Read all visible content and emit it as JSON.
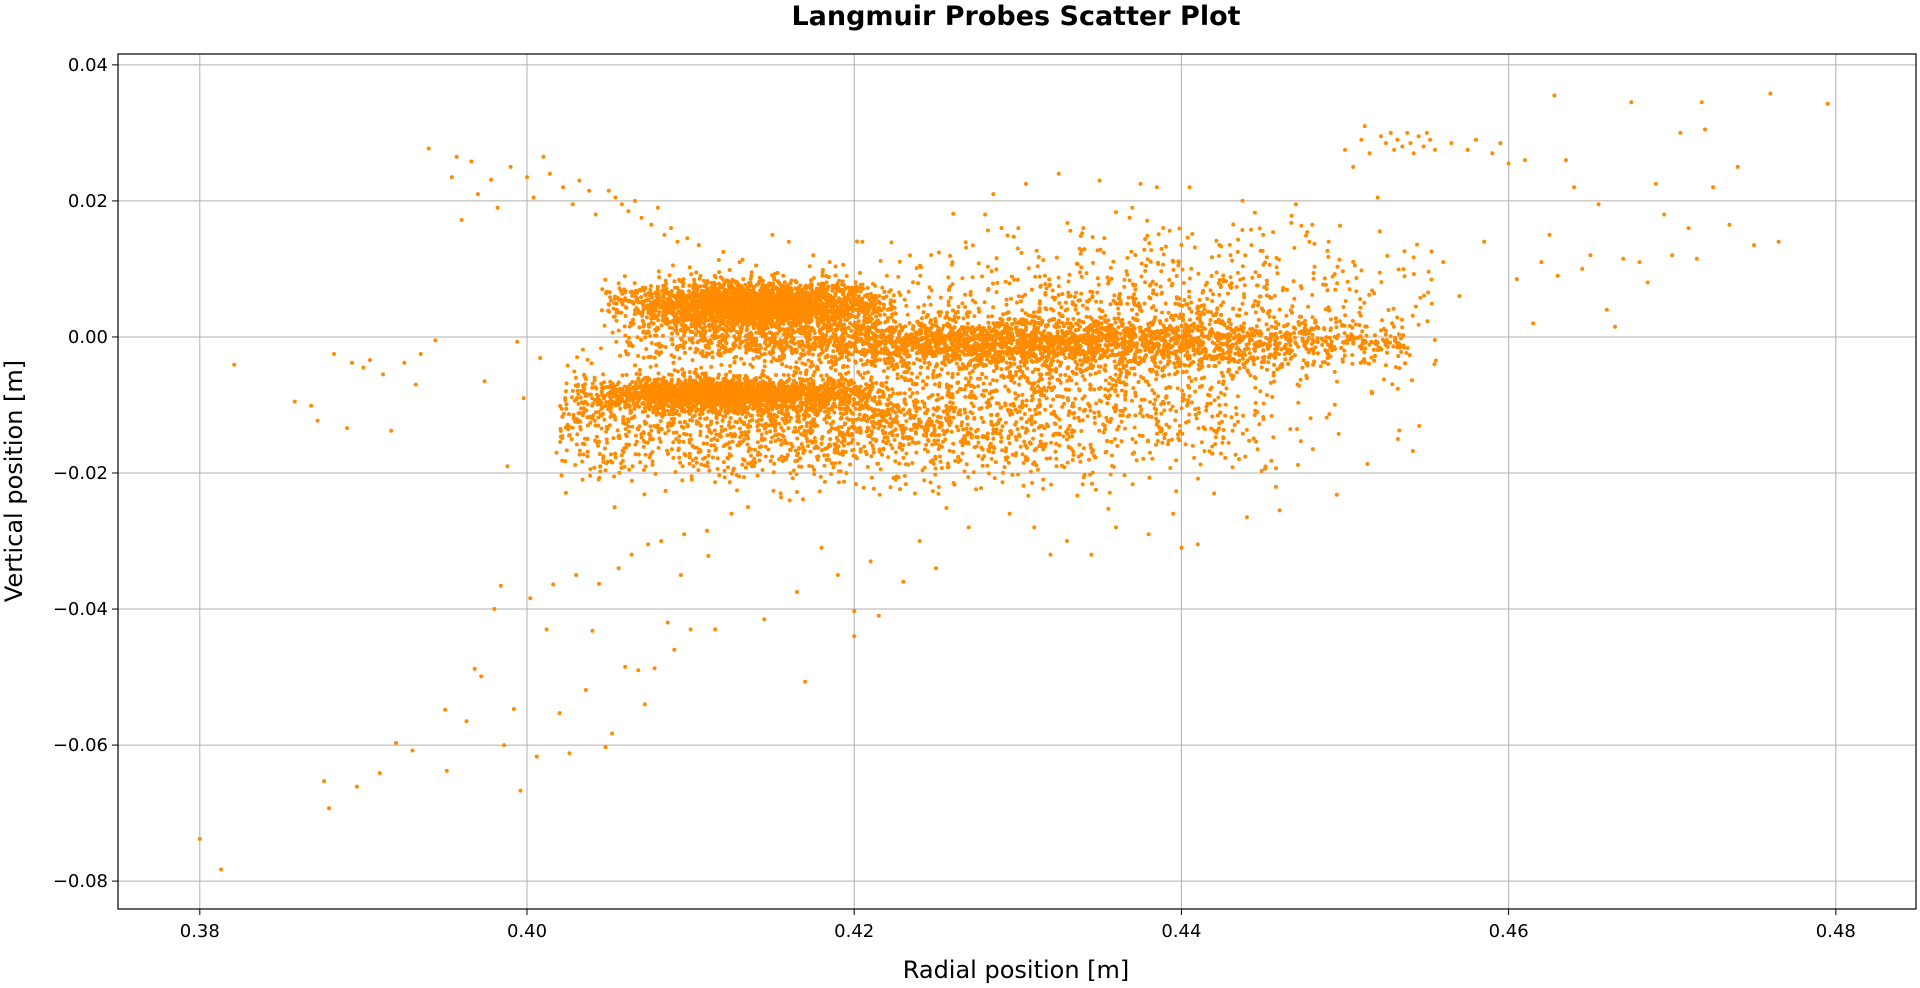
{
  "chart_data": {
    "type": "scatter",
    "title": "Langmuir Probes Scatter Plot",
    "xlabel": "Radial position [m]",
    "ylabel": "Vertical position [m]",
    "xlim": [
      0.375,
      0.4849
    ],
    "ylim": [
      -0.0841,
      0.0416
    ],
    "xticks": [
      0.38,
      0.4,
      0.42,
      0.44,
      0.46,
      0.48
    ],
    "xtick_labels": [
      "0.38",
      "0.40",
      "0.42",
      "0.44",
      "0.46",
      "0.48"
    ],
    "yticks": [
      0.04,
      0.02,
      0.0,
      -0.02,
      -0.04,
      -0.06,
      -0.08
    ],
    "ytick_labels": [
      "0.04",
      "0.02",
      "0.00",
      "−0.02",
      "−0.04",
      "−0.06",
      "−0.08"
    ],
    "grid": true,
    "marker_color": "#ff8c00",
    "series": [
      {
        "points": [
          [
            0.38,
            -0.0738
          ],
          [
            0.3813,
            -0.0783
          ],
          [
            0.3821,
            -0.0041
          ],
          [
            0.3858,
            -0.0095
          ],
          [
            0.3868,
            -0.0101
          ],
          [
            0.3872,
            -0.0123
          ],
          [
            0.3876,
            -0.0653
          ],
          [
            0.3879,
            -0.0693
          ],
          [
            0.3882,
            -0.0025
          ],
          [
            0.389,
            -0.0134
          ],
          [
            0.3893,
            -0.0038
          ],
          [
            0.3896,
            -0.0661
          ],
          [
            0.39,
            -0.0045
          ],
          [
            0.3904,
            -0.0034
          ],
          [
            0.391,
            -0.0641
          ],
          [
            0.3912,
            -0.0055
          ],
          [
            0.3917,
            -0.0138
          ],
          [
            0.392,
            -0.0597
          ],
          [
            0.3925,
            -0.0038
          ],
          [
            0.393,
            -0.0608
          ],
          [
            0.3932,
            -0.007
          ],
          [
            0.3935,
            -0.0025
          ],
          [
            0.394,
            0.0277
          ],
          [
            0.3944,
            -0.0005
          ],
          [
            0.395,
            -0.0548
          ],
          [
            0.3951,
            -0.0638
          ],
          [
            0.3954,
            0.0235
          ],
          [
            0.3957,
            0.0265
          ],
          [
            0.396,
            0.0172
          ],
          [
            0.3963,
            -0.0565
          ],
          [
            0.3966,
            0.0258
          ],
          [
            0.3968,
            -0.0488
          ],
          [
            0.397,
            0.021
          ],
          [
            0.3972,
            -0.0499
          ],
          [
            0.3974,
            -0.0065
          ],
          [
            0.3978,
            0.0231
          ],
          [
            0.398,
            -0.04
          ],
          [
            0.3982,
            0.019
          ],
          [
            0.3984,
            -0.0366
          ],
          [
            0.3986,
            -0.06
          ],
          [
            0.3988,
            -0.019
          ],
          [
            0.399,
            0.025
          ],
          [
            0.3992,
            -0.0547
          ],
          [
            0.3994,
            -0.0007
          ],
          [
            0.3996,
            -0.0667
          ],
          [
            0.3998,
            -0.009
          ],
          [
            0.4,
            0.0235
          ],
          [
            0.4002,
            -0.0384
          ],
          [
            0.4004,
            0.0205
          ],
          [
            0.4006,
            -0.0617
          ],
          [
            0.4008,
            -0.0031
          ],
          [
            0.401,
            0.0265
          ],
          [
            0.4012,
            -0.043
          ],
          [
            0.4014,
            0.024
          ],
          [
            0.4016,
            -0.0364
          ],
          [
            0.4018,
            -0.017
          ],
          [
            0.402,
            -0.0553
          ],
          [
            0.4022,
            0.022
          ],
          [
            0.4024,
            -0.0099
          ],
          [
            0.4026,
            -0.0612
          ],
          [
            0.4028,
            0.0195
          ],
          [
            0.403,
            -0.035
          ],
          [
            0.4032,
            0.023
          ],
          [
            0.4034,
            -0.021
          ],
          [
            0.4036,
            -0.0519
          ],
          [
            0.4038,
            0.0215
          ],
          [
            0.404,
            -0.0432
          ],
          [
            0.4042,
            0.018
          ],
          [
            0.4044,
            -0.0363
          ],
          [
            0.4046,
            0.007
          ],
          [
            0.4048,
            -0.0603
          ],
          [
            0.405,
            0.0215
          ],
          [
            0.4052,
            -0.0583
          ],
          [
            0.4054,
            0.0205
          ],
          [
            0.4056,
            -0.034
          ],
          [
            0.4058,
            0.0195
          ],
          [
            0.406,
            -0.0485
          ],
          [
            0.4062,
            0.0185
          ],
          [
            0.4064,
            -0.032
          ],
          [
            0.4066,
            0.02
          ],
          [
            0.4068,
            -0.049
          ],
          [
            0.407,
            0.0175
          ],
          [
            0.4072,
            -0.054
          ],
          [
            0.4074,
            -0.0305
          ],
          [
            0.4076,
            0.0165
          ],
          [
            0.4078,
            -0.0487
          ],
          [
            0.408,
            0.019
          ],
          [
            0.4082,
            -0.03
          ],
          [
            0.4084,
            0.015
          ],
          [
            0.4086,
            -0.042
          ],
          [
            0.4088,
            0.016
          ],
          [
            0.409,
            -0.046
          ],
          [
            0.4092,
            0.014
          ],
          [
            0.4094,
            -0.035
          ],
          [
            0.4096,
            -0.029
          ],
          [
            0.4098,
            0.0145
          ],
          [
            0.41,
            -0.043
          ],
          [
            0.4105,
            0.0135
          ],
          [
            0.411,
            -0.0285
          ],
          [
            0.4115,
            -0.043
          ],
          [
            0.412,
            0.0125
          ],
          [
            0.4125,
            -0.026
          ],
          [
            0.413,
            0.011
          ],
          [
            0.4135,
            -0.025
          ],
          [
            0.414,
            0.0105
          ],
          [
            0.4145,
            -0.0415
          ],
          [
            0.415,
            0.015
          ],
          [
            0.4155,
            -0.023
          ],
          [
            0.416,
            0.014
          ],
          [
            0.4165,
            -0.0375
          ],
          [
            0.417,
            -0.0507
          ],
          [
            0.4175,
            0.012
          ],
          [
            0.418,
            -0.031
          ],
          [
            0.4185,
            0.011
          ],
          [
            0.419,
            -0.035
          ],
          [
            0.42,
            -0.0403
          ],
          [
            0.42,
            -0.044
          ],
          [
            0.4205,
            0.014
          ],
          [
            0.421,
            -0.033
          ],
          [
            0.4215,
            -0.041
          ],
          [
            0.422,
            0.009
          ],
          [
            0.423,
            -0.036
          ],
          [
            0.424,
            -0.03
          ],
          [
            0.425,
            -0.034
          ],
          [
            0.426,
            0.011
          ],
          [
            0.427,
            -0.028
          ],
          [
            0.428,
            0.018
          ],
          [
            0.4285,
            0.021
          ],
          [
            0.429,
            0.016
          ],
          [
            0.4295,
            -0.026
          ],
          [
            0.43,
            0.013
          ],
          [
            0.4305,
            0.0225
          ],
          [
            0.431,
            -0.028
          ],
          [
            0.432,
            -0.032
          ],
          [
            0.4325,
            0.024
          ],
          [
            0.433,
            -0.03
          ],
          [
            0.434,
            0.016
          ],
          [
            0.4345,
            -0.032
          ],
          [
            0.435,
            0.023
          ],
          [
            0.436,
            -0.028
          ],
          [
            0.437,
            0.019
          ],
          [
            0.4375,
            0.0225
          ],
          [
            0.438,
            -0.029
          ],
          [
            0.4385,
            0.022
          ],
          [
            0.4395,
            -0.026
          ],
          [
            0.44,
            -0.031
          ],
          [
            0.4405,
            0.022
          ],
          [
            0.441,
            -0.0305
          ],
          [
            0.442,
            -0.023
          ],
          [
            0.443,
            0.012
          ],
          [
            0.444,
            -0.0265
          ],
          [
            0.445,
            0.015
          ],
          [
            0.446,
            -0.0255
          ],
          [
            0.447,
            0.0195
          ],
          [
            0.448,
            0.0165
          ],
          [
            0.449,
            0.014
          ],
          [
            0.4495,
            -0.0232
          ],
          [
            0.45,
            0.0275
          ],
          [
            0.4505,
            0.025
          ],
          [
            0.451,
            0.029
          ],
          [
            0.4512,
            0.031
          ],
          [
            0.4515,
            0.027
          ],
          [
            0.452,
            0.0205
          ],
          [
            0.4522,
            0.0295
          ],
          [
            0.4525,
            0.0285
          ],
          [
            0.4528,
            0.03
          ],
          [
            0.453,
            0.0275
          ],
          [
            0.4532,
            0.029
          ],
          [
            0.4535,
            0.028
          ],
          [
            0.4538,
            0.03
          ],
          [
            0.454,
            0.0285
          ],
          [
            0.4542,
            0.027
          ],
          [
            0.4545,
            0.0295
          ],
          [
            0.4548,
            0.028
          ],
          [
            0.455,
            0.03
          ],
          [
            0.4552,
            0.029
          ],
          [
            0.4555,
            0.0275
          ],
          [
            0.456,
            0.011
          ],
          [
            0.4565,
            0.0285
          ],
          [
            0.457,
            0.006
          ],
          [
            0.4575,
            0.0275
          ],
          [
            0.458,
            0.029
          ],
          [
            0.4585,
            0.014
          ],
          [
            0.459,
            0.027
          ],
          [
            0.4595,
            0.0285
          ],
          [
            0.46,
            0.0255
          ],
          [
            0.4605,
            0.0085
          ],
          [
            0.461,
            0.026
          ],
          [
            0.4615,
            0.002
          ],
          [
            0.462,
            0.011
          ],
          [
            0.4625,
            0.015
          ],
          [
            0.4628,
            0.0355
          ],
          [
            0.463,
            0.009
          ],
          [
            0.4635,
            0.026
          ],
          [
            0.464,
            0.022
          ],
          [
            0.4645,
            0.01
          ],
          [
            0.465,
            0.012
          ],
          [
            0.4655,
            0.0195
          ],
          [
            0.466,
            0.004
          ],
          [
            0.4665,
            0.0015
          ],
          [
            0.467,
            0.0115
          ],
          [
            0.4675,
            0.0345
          ],
          [
            0.468,
            0.011
          ],
          [
            0.4685,
            0.008
          ],
          [
            0.469,
            0.0225
          ],
          [
            0.4695,
            0.018
          ],
          [
            0.47,
            0.012
          ],
          [
            0.4705,
            0.03
          ],
          [
            0.471,
            0.016
          ],
          [
            0.4715,
            0.0115
          ],
          [
            0.4718,
            0.0345
          ],
          [
            0.472,
            0.0305
          ],
          [
            0.4725,
            0.022
          ],
          [
            0.4735,
            0.0165
          ],
          [
            0.474,
            0.025
          ],
          [
            0.475,
            0.0135
          ],
          [
            0.476,
            0.0358
          ],
          [
            0.4765,
            0.014
          ],
          [
            0.4795,
            0.0343
          ]
        ],
        "clusters": [
          {
            "n": 2600,
            "cx": 0.414,
            "sx": 0.004,
            "cy": 0.0045,
            "sy": 0.0018,
            "xmin": 0.4045,
            "xmax": 0.4225
          },
          {
            "n": 3800,
            "cx": 0.43,
            "sx": 0.012,
            "cy": -0.001,
            "sy": 0.0018,
            "xmin": 0.406,
            "xmax": 0.454
          },
          {
            "n": 1900,
            "cx": 0.4125,
            "sx": 0.0045,
            "cy": -0.0085,
            "sy": 0.0012,
            "xmin": 0.403,
            "xmax": 0.422
          },
          {
            "n": 2000,
            "cx": 0.418,
            "sx": 0.012,
            "cy": -0.013,
            "sy": 0.004,
            "xmin": 0.402,
            "xmax": 0.446
          },
          {
            "n": 900,
            "cx": 0.433,
            "sx": 0.009,
            "cy": -0.003,
            "sy": 0.007,
            "xmin": 0.415,
            "xmax": 0.456
          },
          {
            "n": 500,
            "cx": 0.44,
            "sx": 0.008,
            "cy": 0.006,
            "sy": 0.005,
            "xmin": 0.42,
            "xmax": 0.456
          }
        ]
      }
    ]
  }
}
